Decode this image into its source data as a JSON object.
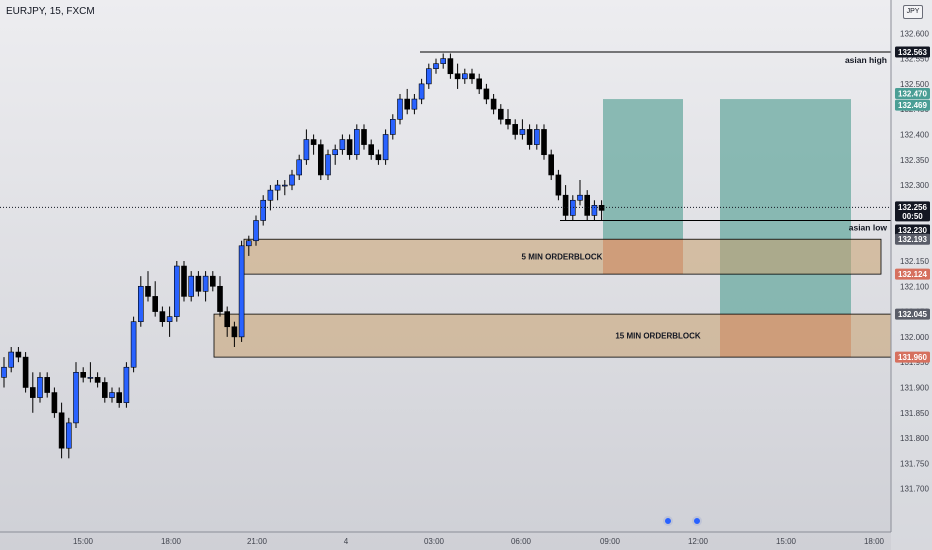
{
  "header": {
    "symbol": "EURJPY, 15, FXCM",
    "currency_button": "JPY"
  },
  "colors": {
    "up_candle": "#2962ff",
    "down_candle": "#000000",
    "orderblock_fill": "#c8a06e",
    "target_fill": "#6aaaa0",
    "stop_fill": "#d48874",
    "line": "#000000",
    "current_price_tag": "#131722",
    "green_tag": "#4a9e95",
    "red_tag": "#d6705e"
  },
  "price_tags": [
    {
      "label": "132.563",
      "value": 132.563,
      "color": "#131722"
    },
    {
      "label": "132.470",
      "value": 132.47,
      "color": "#4a9e95"
    },
    {
      "label": "132.469",
      "value": 132.469,
      "color": "#4a9e95"
    },
    {
      "label": "132.256",
      "value": 132.256,
      "color": "#131722",
      "sub": "00:50"
    },
    {
      "label": "132.230",
      "value": 132.23,
      "color": "#131722"
    },
    {
      "label": "132.193",
      "value": 132.193,
      "color": "#5a5d68"
    },
    {
      "label": "132.124",
      "value": 132.124,
      "color": "#d6705e"
    },
    {
      "label": "132.045",
      "value": 132.045,
      "color": "#5a5d68"
    },
    {
      "label": "131.960",
      "value": 131.96,
      "color": "#d6705e"
    }
  ],
  "annotations": {
    "asian_high": "asian high",
    "asian_low": "asian low",
    "ob_5min": "5 MIN ORDERBLOCK",
    "ob_15min": "15 MIN ORDERBLOCK"
  },
  "chart_data": {
    "type": "candlestick",
    "title": "EURJPY, 15, FXCM",
    "ylim": [
      131.68,
      132.64
    ],
    "y_ticks": [
      "132.600",
      "132.550",
      "132.500",
      "132.450",
      "132.400",
      "132.350",
      "132.300",
      "132.250",
      "132.200",
      "132.150",
      "132.100",
      "132.050",
      "132.000",
      "131.950",
      "131.900",
      "131.850",
      "131.800",
      "131.750",
      "131.700"
    ],
    "x_ticks": [
      "15:00",
      "18:00",
      "21:00",
      "4",
      "03:00",
      "06:00",
      "09:00",
      "12:00",
      "15:00",
      "18:00"
    ],
    "current_price": 132.256,
    "countdown": "00:50",
    "levels": {
      "asian_high": 132.563,
      "asian_low": 132.23
    },
    "zones": {
      "ob_5min": {
        "top": 132.193,
        "bottom": 132.124
      },
      "ob_15min": {
        "top": 132.045,
        "bottom": 131.96
      }
    },
    "positions": [
      {
        "target_top": 132.47,
        "entry": 132.193,
        "stop": 132.124
      },
      {
        "target_top": 132.47,
        "entry": 132.045,
        "stop": 131.96
      }
    ],
    "candles": [
      [
        131.92,
        131.96,
        131.9,
        131.94
      ],
      [
        131.94,
        131.98,
        131.93,
        131.97
      ],
      [
        131.97,
        131.98,
        131.95,
        131.96
      ],
      [
        131.96,
        131.97,
        131.89,
        131.9
      ],
      [
        131.9,
        131.93,
        131.85,
        131.88
      ],
      [
        131.88,
        131.93,
        131.87,
        131.92
      ],
      [
        131.92,
        131.93,
        131.88,
        131.89
      ],
      [
        131.89,
        131.9,
        131.84,
        131.85
      ],
      [
        131.85,
        131.87,
        131.76,
        131.78
      ],
      [
        131.78,
        131.84,
        131.76,
        131.83
      ],
      [
        131.83,
        131.95,
        131.82,
        131.93
      ],
      [
        131.93,
        131.94,
        131.91,
        131.92
      ],
      [
        131.92,
        131.95,
        131.91,
        131.92
      ],
      [
        131.92,
        131.93,
        131.9,
        131.91
      ],
      [
        131.91,
        131.92,
        131.87,
        131.88
      ],
      [
        131.88,
        131.9,
        131.87,
        131.89
      ],
      [
        131.89,
        131.9,
        131.86,
        131.87
      ],
      [
        131.87,
        131.95,
        131.86,
        131.94
      ],
      [
        131.94,
        132.04,
        131.93,
        132.03
      ],
      [
        132.03,
        132.12,
        132.02,
        132.1
      ],
      [
        132.1,
        132.13,
        132.07,
        132.08
      ],
      [
        132.08,
        132.11,
        132.04,
        132.05
      ],
      [
        132.05,
        132.06,
        132.02,
        132.03
      ],
      [
        132.03,
        132.06,
        132.0,
        132.04
      ],
      [
        132.04,
        132.15,
        132.03,
        132.14
      ],
      [
        132.14,
        132.15,
        132.07,
        132.08
      ],
      [
        132.08,
        132.13,
        132.07,
        132.12
      ],
      [
        132.12,
        132.13,
        132.08,
        132.09
      ],
      [
        132.09,
        132.13,
        132.07,
        132.12
      ],
      [
        132.12,
        132.13,
        132.09,
        132.1
      ],
      [
        132.1,
        132.12,
        132.04,
        132.05
      ],
      [
        132.05,
        132.06,
        132.0,
        132.02
      ],
      [
        132.02,
        132.03,
        131.98,
        132.0
      ],
      [
        132.0,
        132.19,
        131.99,
        132.18
      ],
      [
        132.18,
        132.2,
        132.16,
        132.19
      ],
      [
        132.19,
        132.24,
        132.18,
        132.23
      ],
      [
        132.23,
        132.28,
        132.22,
        132.27
      ],
      [
        132.27,
        132.3,
        132.25,
        132.29
      ],
      [
        132.29,
        132.31,
        132.27,
        132.3
      ],
      [
        132.3,
        132.31,
        132.28,
        132.3
      ],
      [
        132.3,
        132.33,
        132.29,
        132.32
      ],
      [
        132.32,
        132.36,
        132.31,
        132.35
      ],
      [
        132.35,
        132.41,
        132.34,
        132.39
      ],
      [
        132.39,
        132.4,
        132.36,
        132.38
      ],
      [
        132.38,
        132.39,
        132.31,
        132.32
      ],
      [
        132.32,
        132.37,
        132.31,
        132.36
      ],
      [
        132.36,
        132.38,
        132.34,
        132.37
      ],
      [
        132.37,
        132.4,
        132.36,
        132.39
      ],
      [
        132.39,
        132.4,
        132.35,
        132.36
      ],
      [
        132.36,
        132.42,
        132.35,
        132.41
      ],
      [
        132.41,
        132.42,
        132.37,
        132.38
      ],
      [
        132.38,
        132.39,
        132.35,
        132.36
      ],
      [
        132.36,
        132.37,
        132.34,
        132.35
      ],
      [
        132.35,
        132.41,
        132.34,
        132.4
      ],
      [
        132.4,
        132.44,
        132.39,
        132.43
      ],
      [
        132.43,
        132.48,
        132.42,
        132.47
      ],
      [
        132.47,
        132.49,
        132.44,
        132.45
      ],
      [
        132.45,
        132.48,
        132.44,
        132.47
      ],
      [
        132.47,
        132.51,
        132.46,
        132.5
      ],
      [
        132.5,
        132.54,
        132.49,
        132.53
      ],
      [
        132.53,
        132.55,
        132.52,
        132.54
      ],
      [
        132.54,
        132.56,
        132.53,
        132.55
      ],
      [
        132.55,
        132.56,
        132.51,
        132.52
      ],
      [
        132.52,
        132.54,
        132.49,
        132.51
      ],
      [
        132.51,
        132.53,
        132.5,
        132.52
      ],
      [
        132.52,
        132.53,
        132.5,
        132.51
      ],
      [
        132.51,
        132.52,
        132.48,
        132.49
      ],
      [
        132.49,
        132.5,
        132.46,
        132.47
      ],
      [
        132.47,
        132.48,
        132.44,
        132.45
      ],
      [
        132.45,
        132.46,
        132.42,
        132.43
      ],
      [
        132.43,
        132.45,
        132.41,
        132.42
      ],
      [
        132.42,
        132.43,
        132.39,
        132.4
      ],
      [
        132.4,
        132.43,
        132.39,
        132.41
      ],
      [
        132.41,
        132.42,
        132.37,
        132.38
      ],
      [
        132.38,
        132.42,
        132.37,
        132.41
      ],
      [
        132.41,
        132.42,
        132.35,
        132.36
      ],
      [
        132.36,
        132.37,
        132.31,
        132.32
      ],
      [
        132.32,
        132.33,
        132.27,
        132.28
      ],
      [
        132.28,
        132.3,
        132.23,
        132.24
      ],
      [
        132.24,
        132.28,
        132.23,
        132.27
      ],
      [
        132.27,
        132.31,
        132.26,
        132.28
      ],
      [
        132.28,
        132.29,
        132.23,
        132.24
      ],
      [
        132.24,
        132.27,
        132.23,
        132.26
      ],
      [
        132.26,
        132.27,
        132.23,
        132.25
      ]
    ]
  }
}
